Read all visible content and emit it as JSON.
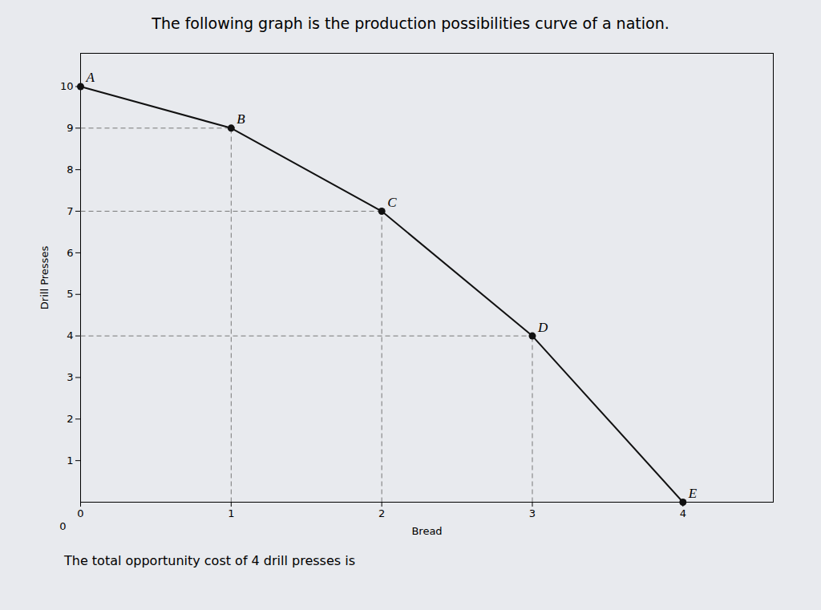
{
  "chart_data": {
    "type": "line",
    "title": "The following graph is the production possibilities curve of a nation.",
    "subtitle": "The total opportunity cost of 4 drill presses is",
    "xlabel": "Bread",
    "ylabel": "Drill Presses",
    "x": [
      0,
      1,
      2,
      3,
      4
    ],
    "values": [
      10,
      9,
      7,
      4,
      0
    ],
    "color": "#111111",
    "marker": "circle",
    "background_color": "#e8eaee",
    "annotations": [
      {
        "text": "A",
        "x": 0,
        "y": 10
      },
      {
        "text": "B",
        "x": 1,
        "y": 9
      },
      {
        "text": "C",
        "x": 2,
        "y": 7
      },
      {
        "text": "D",
        "x": 3,
        "y": 4
      },
      {
        "text": "E",
        "x": 4,
        "y": 0
      }
    ],
    "origin_label": "0",
    "drop_lines": {
      "color": "#777777",
      "line_style": "dashed",
      "points": [
        {
          "x": 1,
          "y": 9
        },
        {
          "x": 2,
          "y": 7
        },
        {
          "x": 3,
          "y": 4
        }
      ]
    },
    "xlim": [
      0,
      4.6
    ],
    "ylim": [
      0,
      10.8
    ],
    "xticks": [
      0,
      1,
      2,
      3,
      4
    ],
    "yticks": [
      1,
      2,
      3,
      4,
      5,
      6,
      7,
      8,
      9,
      10
    ],
    "grid": false
  }
}
